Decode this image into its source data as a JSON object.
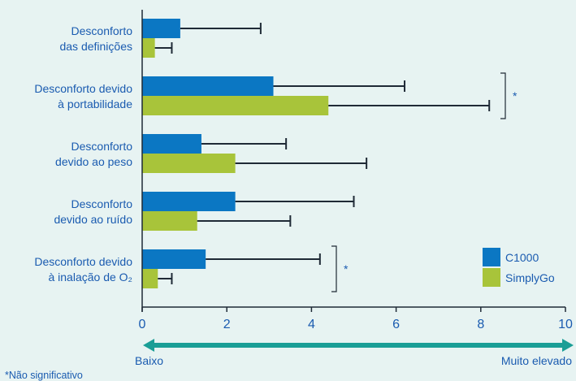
{
  "colors": {
    "accent": "#0b77c3",
    "green": "#a8c43a",
    "text": "#1a5bb0",
    "arrow": "#1a9e96"
  },
  "chart_data": {
    "type": "bar",
    "orientation": "horizontal",
    "categories": [
      [
        "Desconforto",
        "das definições"
      ],
      [
        "Desconforto devido",
        "à portabilidade"
      ],
      [
        "Desconforto",
        "devido ao peso"
      ],
      [
        "Desconforto",
        "devido ao ruído"
      ],
      [
        "Desconforto devido",
        "à inalação de O₂"
      ]
    ],
    "series": [
      {
        "name": "C1000",
        "color": "#0b77c3",
        "values": [
          0.9,
          3.1,
          1.4,
          2.2,
          1.5
        ],
        "error": [
          1.9,
          3.1,
          2.0,
          2.8,
          2.7
        ]
      },
      {
        "name": "SimplyGo",
        "color": "#a8c43a",
        "values": [
          0.3,
          4.4,
          2.2,
          1.3,
          0.37
        ],
        "error": [
          0.4,
          3.8,
          3.1,
          2.2,
          0.33
        ]
      }
    ],
    "xlim": [
      0,
      10
    ],
    "xticks": [
      0,
      2,
      4,
      6,
      8,
      10
    ],
    "significance_marks": [
      {
        "category_index": 1,
        "label": "*"
      },
      {
        "category_index": 4,
        "label": "*"
      }
    ],
    "axis_arrow": {
      "left_label": "Baixo",
      "right_label": "Muito elevado"
    },
    "footnote": "*Não significativo",
    "legend_position": "bottom-right"
  }
}
